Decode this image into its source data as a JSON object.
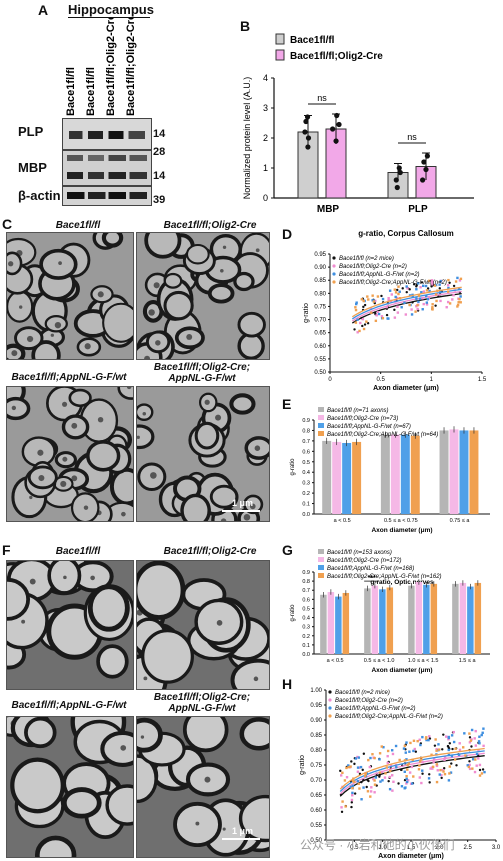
{
  "panelA": {
    "letter": "A",
    "region": "Hippocampus",
    "lanes": [
      "Bace1fl/fl",
      "Bace1fl/fl",
      "Bace1fl/fl;Olig2-Cre",
      "Bace1fl/fl;Olig2-Cre"
    ],
    "blots": [
      {
        "protein": "PLP",
        "markers": [
          "14"
        ]
      },
      {
        "protein": "MBP",
        "markers": [
          "28",
          "14"
        ]
      },
      {
        "protein": "β-actin",
        "markers": [
          "39"
        ]
      }
    ]
  },
  "panelB": {
    "letter": "B",
    "legend": [
      "Bace1fl/fl",
      "Bace1fl/fl;Olig2-Cre"
    ],
    "colors": [
      "#cfcfcf",
      "#f2a8e8"
    ],
    "chart_data": {
      "type": "bar",
      "categories": [
        "MBP",
        "PLP"
      ],
      "series": [
        {
          "name": "Bace1fl/fl",
          "values": [
            2.2,
            0.85
          ],
          "err": [
            0.55,
            0.3
          ],
          "points": [
            [
              1.7,
              2.0,
              2.2,
              2.55,
              2.7
            ],
            [
              0.35,
              0.6,
              0.85,
              1.0
            ]
          ]
        },
        {
          "name": "Bace1fl/fl;Olig2-Cre",
          "values": [
            2.3,
            1.05
          ],
          "err": [
            0.5,
            0.45
          ],
          "points": [
            [
              1.9,
              2.3,
              2.45,
              2.75
            ],
            [
              0.6,
              0.95,
              1.2,
              1.4
            ]
          ]
        }
      ],
      "ylabel": "Normalized protein level (A.U.)",
      "ylim": [
        0,
        4
      ],
      "yticks": [
        0,
        1,
        2,
        3,
        4
      ],
      "annotations": [
        "ns",
        "ns"
      ]
    }
  },
  "panelC": {
    "letter": "C",
    "captions": [
      "Bace1fl/fl",
      "Bace1fl/fl;Olig2-Cre",
      "Bace1fl/fl;AppNL-G-F/wt",
      "Bace1fl/fl;Olig2-Cre; AppNL-G-F/wt"
    ],
    "scale": "1 μm"
  },
  "panelD": {
    "letter": "D",
    "chart_data": {
      "type": "scatter",
      "title": "g-ratio, Corpus Callosum",
      "xlabel": "Axon diameter (μm)",
      "ylabel": "g-ratio",
      "xlim": [
        0,
        1.5
      ],
      "ylim": [
        0.5,
        0.95
      ],
      "xticks": [
        "0",
        "0.5",
        "1",
        "1.5"
      ],
      "yticks": [
        "0.50",
        "0.55",
        "0.60",
        "0.65",
        "0.70",
        "0.75",
        "0.80",
        "0.85",
        "0.90",
        "0.95"
      ],
      "series": [
        {
          "name": "Bace1fl/fl (n=2 mice)",
          "color": "#111111"
        },
        {
          "name": "Bace1fl/fl;Olig2-Cre (n=2)",
          "color": "#f08cd0"
        },
        {
          "name": "Bace1fl/fl;AppNL-G-F/wt (n=2)",
          "color": "#3f8fe0"
        },
        {
          "name": "Bace1fl/fl;Olig2-Cre;AppNL-G-F/wt (n=2)",
          "color": "#f0a050"
        }
      ]
    }
  },
  "panelE": {
    "letter": "E",
    "chart_data": {
      "type": "bar",
      "xlabel": "Axon diameter (μm)",
      "ylabel": "g-ratio",
      "ylim": [
        0,
        0.9
      ],
      "yticks": [
        "0.0",
        "0.1",
        "0.2",
        "0.3",
        "0.4",
        "0.5",
        "0.6",
        "0.7",
        "0.8",
        "0.9"
      ],
      "categories": [
        "a < 0.5",
        "0.5 ≤ a < 0.75",
        "0.75 ≤ a"
      ],
      "series": [
        {
          "name": "Bace1fl/fl (n=71 axons)",
          "color": "#b5b5b5",
          "values": [
            0.7,
            0.76,
            0.8
          ]
        },
        {
          "name": "Bace1fl/fl;Olig2-Cre (n=73)",
          "color": "#f5b8e6",
          "values": [
            0.69,
            0.76,
            0.81
          ]
        },
        {
          "name": "Bace1fl/fl;AppNL-G-F/wt (n=67)",
          "color": "#4fa0e8",
          "values": [
            0.68,
            0.76,
            0.8
          ]
        },
        {
          "name": "Bace1fl/fl;Olig2-Cre;AppNL-G-F/wt (n=64)",
          "color": "#f0a050",
          "values": [
            0.69,
            0.75,
            0.8
          ]
        }
      ]
    }
  },
  "panelF": {
    "letter": "F",
    "captions": [
      "Bace1fl/fl",
      "Bace1fl/fl;Olig2-Cre",
      "Bace1fl/fl;AppNL-G-F/wt",
      "Bace1fl/fl;Olig2-Cre; AppNL-G-F/wt"
    ],
    "scale": "1 μm"
  },
  "panelG": {
    "letter": "G",
    "chart_data": {
      "type": "bar",
      "title": "g-ratio, Optic nerves",
      "xlabel": "Axon diameter (μm)",
      "ylabel": "g-ratio",
      "ylim": [
        0,
        0.9
      ],
      "yticks": [
        "0.0",
        "0.1",
        "0.2",
        "0.3",
        "0.4",
        "0.5",
        "0.6",
        "0.7",
        "0.8",
        "0.9"
      ],
      "categories": [
        "a < 0.5",
        "0.5 ≤ a < 1.0",
        "1.0 ≤ a < 1.5",
        "1.5 ≤ a"
      ],
      "annotation": "***",
      "series": [
        {
          "name": "Bace1fl/fl (n=153 axons)",
          "color": "#b5b5b5",
          "values": [
            0.65,
            0.72,
            0.75,
            0.77
          ]
        },
        {
          "name": "Bace1fl/fl;Olig2-Cre (n=172)",
          "color": "#f5b8e6",
          "values": [
            0.68,
            0.75,
            0.79,
            0.78
          ]
        },
        {
          "name": "Bace1fl/fl;AppNL-G-F/wt (n=168)",
          "color": "#4fa0e8",
          "values": [
            0.63,
            0.71,
            0.76,
            0.74
          ]
        },
        {
          "name": "Bace1fl/fl;Olig2-Cre;AppNL-G-F/wt (n=162)",
          "color": "#f0a050",
          "values": [
            0.67,
            0.73,
            0.77,
            0.78
          ]
        }
      ]
    }
  },
  "panelH": {
    "letter": "H",
    "chart_data": {
      "type": "scatter",
      "xlabel": "Axon diameter (μm)",
      "ylabel": "g-ratio",
      "xlim": [
        0,
        3
      ],
      "ylim": [
        0.5,
        1.0
      ],
      "xticks": [
        "0.5",
        "1.0",
        "1.5",
        "2.0",
        "2.5",
        "3.0"
      ],
      "yticks": [
        "0.50",
        "0.55",
        "0.60",
        "0.65",
        "0.70",
        "0.75",
        "0.80",
        "0.85",
        "0.90",
        "0.95",
        "1.00"
      ],
      "series": [
        {
          "name": "Bace1fl/fl (n=2 mice)",
          "color": "#111111"
        },
        {
          "name": "Bace1fl/fl;Olig2-Cre (n=2)",
          "color": "#f08cd0"
        },
        {
          "name": "Bace1fl/fl;AppNL-G-F/wt (n=2)",
          "color": "#3f8fe0"
        },
        {
          "name": "Bace1fl/fl;Olig2-Cre;AppNL-G-F/wt (n=2)",
          "color": "#f0a050"
        }
      ]
    }
  },
  "watermark": "公众号 · 小岩和他的小伙伴们"
}
